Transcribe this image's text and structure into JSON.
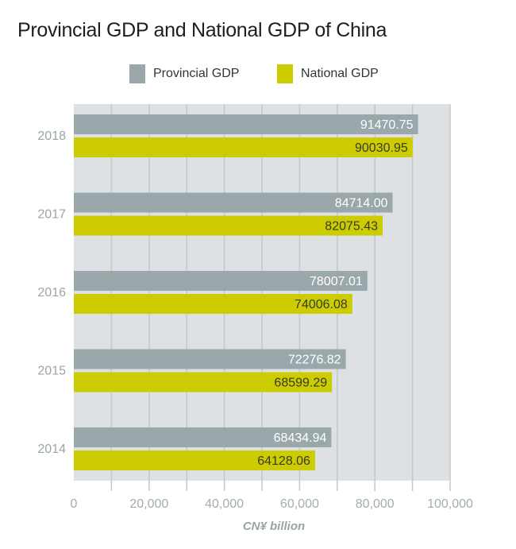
{
  "chart_data": {
    "type": "bar",
    "orientation": "horizontal",
    "title": "Provincial GDP and National GDP of China",
    "xlabel": "CN¥ billion",
    "ylabel": "",
    "categories": [
      "2018",
      "2017",
      "2016",
      "2015",
      "2014"
    ],
    "series": [
      {
        "name": "Provincial GDP",
        "color": "#9aa8ab",
        "label_color": "#ffffff",
        "values": [
          91470.75,
          84714.0,
          78007.01,
          72276.82,
          68434.94
        ],
        "labels": [
          "91470.75",
          "84714.00",
          "78007.01",
          "72276.82",
          "68434.94"
        ]
      },
      {
        "name": "National GDP",
        "color": "#cccc00",
        "label_color": "#3a3a2a",
        "values": [
          90030.95,
          82075.43,
          74006.08,
          68599.29,
          64128.06
        ],
        "labels": [
          "90030.95",
          "82075.43",
          "74006.08",
          "68599.29",
          "64128.06"
        ]
      }
    ],
    "xlim": [
      0,
      100000
    ],
    "xticks": [
      0,
      20000,
      40000,
      60000,
      80000,
      100000
    ],
    "xtick_labels": [
      "0",
      "20,000",
      "40,000",
      "60,000",
      "80,000",
      "100,000"
    ],
    "grid": true,
    "legend_position": "top"
  }
}
